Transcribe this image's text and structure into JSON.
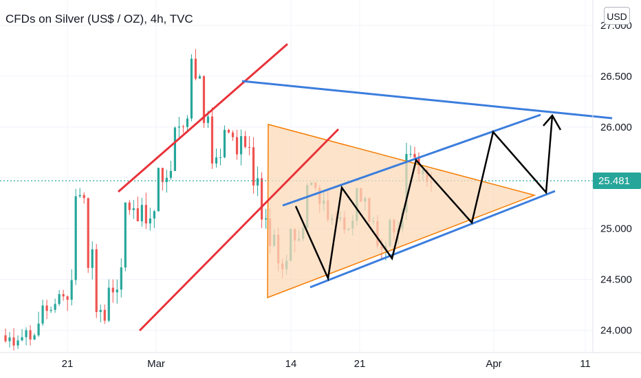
{
  "header": {
    "title": "CFDs on Silver (US$ / OZ), 4h, TVC",
    "currency_button": "USD"
  },
  "colors": {
    "up_candle": "#26a69a",
    "down_candle": "#ef5350",
    "channel_line": "#e8323a",
    "triangle_fill": "#fbd9b8",
    "triangle_stroke": "#f57c00",
    "blue_line": "#3b7ddd",
    "zigzag": "#000000",
    "price_tag": "#26a69a",
    "grid": "#f0f3fa"
  },
  "chart_data": {
    "type": "candlestick",
    "title": "CFDs on Silver (US$ / OZ), 4h, TVC",
    "y_axis": {
      "ticks": [
        "24.000",
        "24.500",
        "25.000",
        "25.500",
        "26.000",
        "26.500",
        "27.000"
      ],
      "ylim": [
        23.78,
        27.25
      ]
    },
    "x_axis": {
      "ticks": [
        "21",
        "Mar",
        "14",
        "21",
        "Apr",
        "11"
      ]
    },
    "last_price": "25.481",
    "candles_approx": [
      {
        "t": "Feb-17",
        "o": 23.95,
        "h": 24.02,
        "l": 23.8,
        "c": 23.9
      },
      {
        "t": "Feb-20",
        "o": 23.9,
        "h": 24.05,
        "l": 23.82,
        "c": 23.95
      },
      {
        "t": "Feb-21",
        "o": 23.95,
        "h": 24.3,
        "l": 23.9,
        "c": 24.2
      },
      {
        "t": "Feb-23",
        "o": 24.2,
        "h": 24.4,
        "l": 24.1,
        "c": 24.3
      },
      {
        "t": "Feb-24",
        "o": 24.3,
        "h": 25.4,
        "l": 24.2,
        "c": 25.3
      },
      {
        "t": "Feb-25",
        "o": 25.3,
        "h": 25.35,
        "l": 24.0,
        "c": 24.2
      },
      {
        "t": "Feb-28",
        "o": 24.2,
        "h": 24.5,
        "l": 23.85,
        "c": 24.4
      },
      {
        "t": "Mar-02",
        "o": 24.4,
        "h": 25.3,
        "l": 24.3,
        "c": 25.2
      },
      {
        "t": "Mar-03",
        "o": 25.2,
        "h": 25.4,
        "l": 24.9,
        "c": 25.1
      },
      {
        "t": "Mar-04",
        "o": 25.1,
        "h": 25.6,
        "l": 25.0,
        "c": 25.5
      },
      {
        "t": "Mar-07",
        "o": 25.5,
        "h": 26.1,
        "l": 25.4,
        "c": 26.0
      },
      {
        "t": "Mar-08",
        "o": 26.0,
        "h": 26.95,
        "l": 25.8,
        "c": 26.5
      },
      {
        "t": "Mar-09",
        "o": 26.5,
        "h": 26.6,
        "l": 25.5,
        "c": 25.7
      },
      {
        "t": "Mar-10",
        "o": 25.7,
        "h": 26.1,
        "l": 25.4,
        "c": 25.9
      },
      {
        "t": "Mar-11",
        "o": 25.9,
        "h": 26.05,
        "l": 25.6,
        "c": 25.8
      },
      {
        "t": "Mar-14",
        "o": 25.8,
        "h": 25.9,
        "l": 25.0,
        "c": 25.1
      },
      {
        "t": "Mar-15",
        "o": 25.1,
        "h": 25.2,
        "l": 24.5,
        "c": 24.6
      },
      {
        "t": "Mar-16",
        "o": 24.6,
        "h": 25.0,
        "l": 24.5,
        "c": 24.9
      },
      {
        "t": "Mar-17",
        "o": 24.9,
        "h": 25.45,
        "l": 24.8,
        "c": 25.4
      },
      {
        "t": "Mar-18",
        "o": 25.4,
        "h": 25.5,
        "l": 25.0,
        "c": 25.1
      },
      {
        "t": "Mar-21",
        "o": 25.1,
        "h": 25.3,
        "l": 24.9,
        "c": 25.0
      },
      {
        "t": "Mar-22",
        "o": 25.0,
        "h": 25.4,
        "l": 24.9,
        "c": 25.3
      },
      {
        "t": "Mar-23",
        "o": 25.3,
        "h": 25.4,
        "l": 24.7,
        "c": 24.8
      },
      {
        "t": "Mar-24",
        "o": 24.8,
        "h": 25.1,
        "l": 24.6,
        "c": 25.0
      },
      {
        "t": "Mar-25",
        "o": 25.0,
        "h": 25.85,
        "l": 24.95,
        "c": 25.7
      },
      {
        "t": "Mar-28",
        "o": 25.7,
        "h": 25.75,
        "l": 25.3,
        "c": 25.45
      }
    ]
  },
  "annotations": {
    "price_tag": "25.481"
  }
}
